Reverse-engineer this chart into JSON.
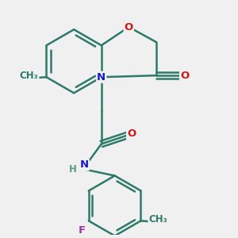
{
  "bg_color": "#f0f0f0",
  "bond_color": "#2d7a6a",
  "N_color": "#1a1acc",
  "O_color": "#cc1a1a",
  "F_color": "#9933aa",
  "H_color": "#5a9a8a",
  "CH3_color": "#2d7a6a",
  "bond_width": 1.8,
  "figsize": [
    3.0,
    3.0
  ],
  "dpi": 100,
  "xlim": [
    -2.5,
    3.5
  ],
  "ylim": [
    -3.8,
    3.2
  ]
}
